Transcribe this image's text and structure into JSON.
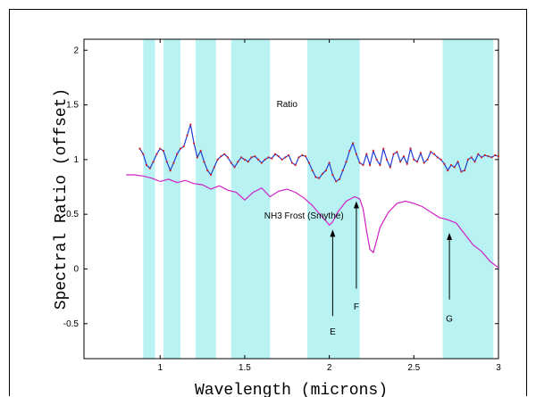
{
  "chart_data": {
    "type": "line",
    "xlabel": "Wavelength (microns)",
    "ylabel": "Spectral Ratio (offset)",
    "xlim": [
      0.55,
      3.0
    ],
    "ylim": [
      -0.82,
      2.1
    ],
    "x_ticks": [
      1,
      1.5,
      2,
      2.5,
      3
    ],
    "x_tick_labels": [
      "1",
      "1.5",
      "2",
      "2.5",
      "3"
    ],
    "y_ticks": [
      -0.5,
      0,
      0.5,
      1,
      1.5,
      2
    ],
    "y_tick_labels": [
      "-0.5",
      "0",
      "0.5",
      "1",
      "1.5",
      "2"
    ],
    "grid": false,
    "bands": [
      [
        0.9,
        0.97
      ],
      [
        1.02,
        1.12
      ],
      [
        1.21,
        1.33
      ],
      [
        1.42,
        1.65
      ],
      [
        1.87,
        2.18
      ],
      [
        2.67,
        2.97
      ]
    ],
    "band_color": "#b9f2f2",
    "series": [
      {
        "name": "Ratio",
        "color": "#1f3fd6",
        "dot_color": "#d62020",
        "x": [
          0.88,
          0.9,
          0.92,
          0.94,
          0.96,
          0.98,
          1.0,
          1.02,
          1.04,
          1.06,
          1.08,
          1.1,
          1.12,
          1.14,
          1.16,
          1.18,
          1.2,
          1.22,
          1.24,
          1.26,
          1.28,
          1.3,
          1.32,
          1.34,
          1.36,
          1.38,
          1.4,
          1.42,
          1.44,
          1.46,
          1.48,
          1.5,
          1.52,
          1.54,
          1.56,
          1.58,
          1.6,
          1.62,
          1.64,
          1.66,
          1.68,
          1.7,
          1.72,
          1.74,
          1.76,
          1.78,
          1.8,
          1.82,
          1.84,
          1.86,
          1.88,
          1.9,
          1.92,
          1.94,
          1.96,
          1.98,
          2.0,
          2.02,
          2.04,
          2.06,
          2.08,
          2.1,
          2.12,
          2.14,
          2.16,
          2.18,
          2.2,
          2.22,
          2.24,
          2.26,
          2.28,
          2.3,
          2.32,
          2.34,
          2.36,
          2.38,
          2.4,
          2.42,
          2.44,
          2.46,
          2.48,
          2.5,
          2.52,
          2.54,
          2.56,
          2.58,
          2.6,
          2.62,
          2.64,
          2.66,
          2.68,
          2.7,
          2.72,
          2.74,
          2.76,
          2.78,
          2.8,
          2.82,
          2.84,
          2.86,
          2.88,
          2.9,
          2.92,
          2.94,
          2.96,
          2.98,
          3.0
        ],
        "y": [
          1.1,
          1.05,
          0.95,
          0.92,
          0.98,
          1.05,
          1.1,
          1.08,
          0.98,
          0.9,
          0.97,
          1.05,
          1.1,
          1.12,
          1.22,
          1.32,
          1.15,
          1.02,
          1.08,
          0.98,
          0.9,
          0.86,
          0.93,
          1.0,
          1.03,
          1.05,
          1.02,
          0.97,
          0.93,
          0.98,
          1.02,
          1.0,
          0.98,
          1.02,
          1.03,
          1.0,
          0.97,
          1.0,
          1.02,
          1.01,
          1.05,
          1.03,
          1.0,
          1.02,
          1.04,
          0.97,
          0.95,
          1.02,
          1.04,
          1.03,
          0.97,
          0.9,
          0.84,
          0.83,
          0.87,
          0.9,
          0.97,
          0.86,
          0.8,
          0.82,
          0.9,
          0.98,
          1.08,
          1.15,
          1.05,
          0.97,
          0.95,
          1.05,
          0.95,
          1.08,
          1.0,
          0.95,
          1.1,
          1.0,
          0.93,
          1.05,
          1.07,
          0.98,
          1.03,
          0.96,
          1.1,
          1.0,
          0.98,
          1.06,
          0.97,
          1.0,
          1.07,
          1.05,
          1.02,
          1.0,
          0.96,
          0.9,
          0.95,
          0.93,
          0.98,
          0.89,
          0.9,
          1.0,
          1.02,
          0.98,
          1.05,
          1.02,
          1.04,
          1.03,
          1.02,
          1.04,
          1.03
        ]
      },
      {
        "name": "NH3 Frost (Smythe)",
        "color": "#d020c8",
        "x": [
          0.8,
          0.85,
          0.9,
          0.95,
          1.0,
          1.05,
          1.1,
          1.15,
          1.2,
          1.25,
          1.3,
          1.35,
          1.4,
          1.45,
          1.5,
          1.55,
          1.6,
          1.65,
          1.7,
          1.75,
          1.8,
          1.85,
          1.9,
          1.95,
          1.98,
          2.0,
          2.02,
          2.05,
          2.1,
          2.15,
          2.18,
          2.2,
          2.22,
          2.24,
          2.26,
          2.28,
          2.3,
          2.35,
          2.4,
          2.45,
          2.5,
          2.55,
          2.6,
          2.65,
          2.7,
          2.75,
          2.8,
          2.85,
          2.9,
          2.95,
          3.0
        ],
        "y": [
          0.86,
          0.86,
          0.85,
          0.83,
          0.8,
          0.82,
          0.79,
          0.81,
          0.78,
          0.77,
          0.73,
          0.76,
          0.72,
          0.7,
          0.63,
          0.7,
          0.74,
          0.66,
          0.71,
          0.73,
          0.7,
          0.65,
          0.58,
          0.49,
          0.44,
          0.4,
          0.43,
          0.52,
          0.62,
          0.66,
          0.64,
          0.55,
          0.35,
          0.18,
          0.15,
          0.26,
          0.38,
          0.52,
          0.6,
          0.62,
          0.6,
          0.57,
          0.52,
          0.47,
          0.45,
          0.42,
          0.32,
          0.22,
          0.16,
          0.07,
          0.01
        ]
      }
    ],
    "annotations": [
      {
        "text": "Ratio",
        "x": 1.75,
        "y": 1.48
      },
      {
        "text": "NH3 Frost (Smythe)",
        "x": 1.85,
        "y": 0.46
      }
    ],
    "arrows": [
      {
        "label": "E",
        "x": 2.02,
        "y_start": -0.43,
        "y_end": 0.36,
        "label_y": -0.6
      },
      {
        "label": "F",
        "x": 2.16,
        "y_start": -0.18,
        "y_end": 0.62,
        "label_y": -0.37
      },
      {
        "label": "G",
        "x": 2.71,
        "y_start": -0.28,
        "y_end": 0.33,
        "label_y": -0.48
      }
    ]
  }
}
